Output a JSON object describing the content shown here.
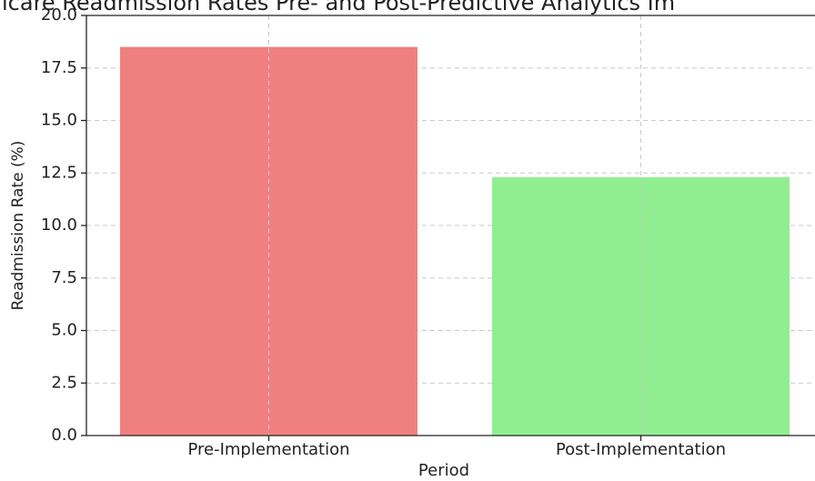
{
  "chart_data": {
    "type": "bar",
    "title": "icare Readmission Rates Pre- and Post-Predictive Analytics Im",
    "xlabel": "Period",
    "ylabel": "Readmission Rate (%)",
    "categories": [
      "Pre-Implementation",
      "Post-Implementation"
    ],
    "values": [
      18.5,
      12.3
    ],
    "colors": [
      "#f08080",
      "#90ee90"
    ],
    "ylim": [
      0,
      20
    ],
    "yticks": [
      {
        "value": 0,
        "label": "0.0"
      },
      2.5,
      {
        "value": 5,
        "label": "5.0"
      },
      7.5,
      {
        "value": 10,
        "label": "10.0"
      },
      12.5,
      {
        "value": 15,
        "label": "15.0"
      },
      17.5,
      {
        "value": 20,
        "label": "20.0"
      }
    ],
    "grid": true
  }
}
